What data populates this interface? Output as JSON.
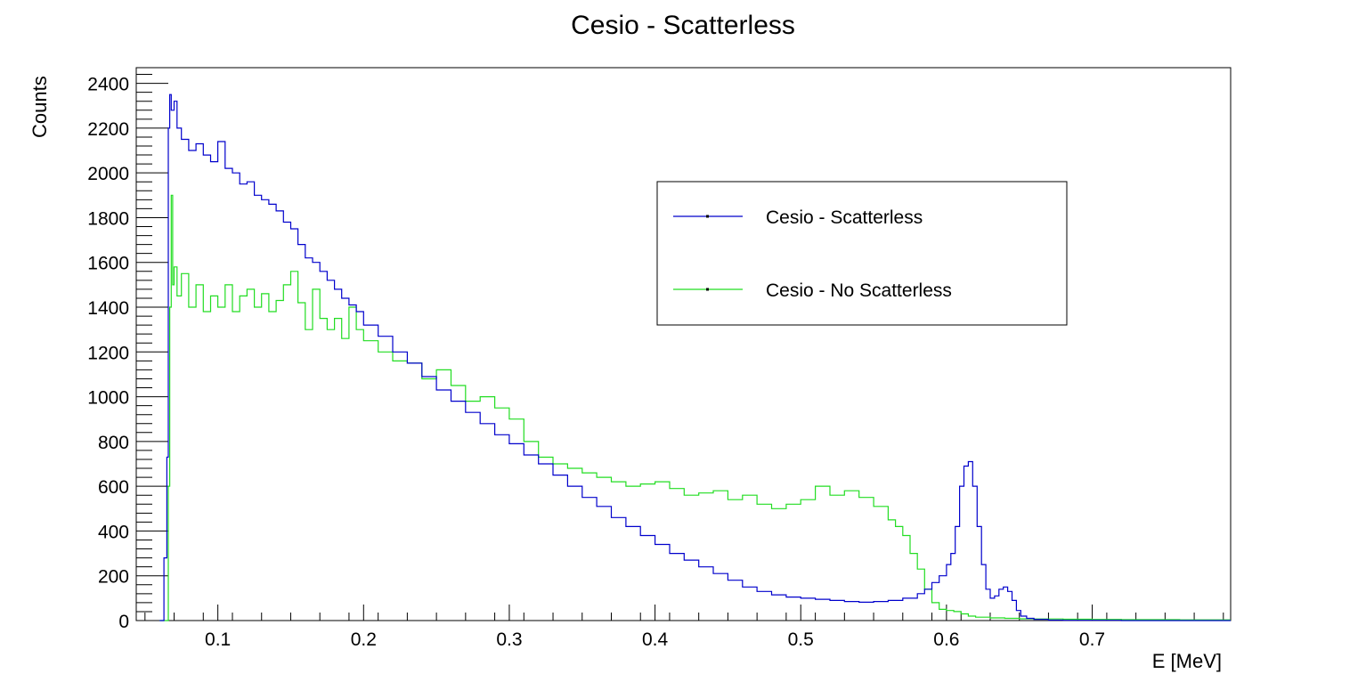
{
  "chart_data": {
    "type": "line",
    "title": "Cesio - Scatterless",
    "xlabel": "E [MeV]",
    "ylabel": "Counts",
    "xlim": [
      0.044,
      0.795
    ],
    "ylim": [
      0,
      2470
    ],
    "x_ticks": [
      0.1,
      0.2,
      0.3,
      0.4,
      0.5,
      0.6,
      0.7
    ],
    "x_tick_labels": [
      "0.1",
      "0.2",
      "0.3",
      "0.4",
      "0.5",
      "0.6",
      "0.7"
    ],
    "y_ticks": [
      0,
      200,
      400,
      600,
      800,
      1000,
      1200,
      1400,
      1600,
      1800,
      2000,
      2200,
      2400
    ],
    "y_tick_labels": [
      "0",
      "200",
      "400",
      "600",
      "800",
      "1000",
      "1200",
      "1400",
      "1600",
      "1800",
      "2000",
      "2200",
      "2400"
    ],
    "grid": false,
    "legend_position": "top-right",
    "series": [
      {
        "name": "Cesio - Scatterless",
        "color": "#0000cc",
        "x": [
          0.06,
          0.063,
          0.065,
          0.066,
          0.067,
          0.068,
          0.07,
          0.072,
          0.075,
          0.08,
          0.085,
          0.09,
          0.095,
          0.1,
          0.105,
          0.11,
          0.115,
          0.12,
          0.125,
          0.13,
          0.135,
          0.14,
          0.145,
          0.15,
          0.155,
          0.16,
          0.165,
          0.17,
          0.175,
          0.18,
          0.185,
          0.19,
          0.195,
          0.2,
          0.21,
          0.22,
          0.23,
          0.24,
          0.25,
          0.26,
          0.27,
          0.28,
          0.29,
          0.3,
          0.31,
          0.32,
          0.33,
          0.34,
          0.35,
          0.36,
          0.37,
          0.38,
          0.39,
          0.4,
          0.41,
          0.42,
          0.43,
          0.44,
          0.45,
          0.46,
          0.47,
          0.48,
          0.49,
          0.5,
          0.51,
          0.52,
          0.53,
          0.54,
          0.55,
          0.56,
          0.57,
          0.58,
          0.585,
          0.59,
          0.595,
          0.6,
          0.603,
          0.606,
          0.609,
          0.612,
          0.615,
          0.618,
          0.621,
          0.624,
          0.627,
          0.63,
          0.633,
          0.636,
          0.639,
          0.642,
          0.645,
          0.648,
          0.651,
          0.655,
          0.66,
          0.67,
          0.68,
          0.7,
          0.72,
          0.74,
          0.76,
          0.78,
          0.795
        ],
        "y": [
          0,
          280,
          730,
          2200,
          2350,
          2280,
          2320,
          2200,
          2150,
          2100,
          2130,
          2080,
          2050,
          2140,
          2020,
          2000,
          1950,
          1960,
          1900,
          1880,
          1860,
          1830,
          1780,
          1750,
          1680,
          1620,
          1600,
          1560,
          1520,
          1480,
          1440,
          1410,
          1380,
          1320,
          1270,
          1200,
          1150,
          1090,
          1030,
          980,
          930,
          880,
          830,
          790,
          740,
          700,
          650,
          600,
          550,
          510,
          460,
          420,
          380,
          340,
          300,
          270,
          240,
          210,
          180,
          150,
          130,
          115,
          105,
          100,
          95,
          90,
          85,
          82,
          85,
          90,
          100,
          120,
          140,
          170,
          200,
          250,
          300,
          420,
          600,
          690,
          710,
          600,
          420,
          250,
          140,
          100,
          110,
          140,
          150,
          130,
          90,
          45,
          20,
          10,
          5,
          2,
          1,
          1,
          0,
          0,
          0,
          0,
          0
        ]
      },
      {
        "name": "Cesio - No Scatterless",
        "color": "#22dd22",
        "x": [
          0.06,
          0.064,
          0.066,
          0.067,
          0.068,
          0.069,
          0.07,
          0.072,
          0.075,
          0.08,
          0.085,
          0.09,
          0.095,
          0.1,
          0.105,
          0.11,
          0.115,
          0.12,
          0.125,
          0.13,
          0.135,
          0.14,
          0.145,
          0.15,
          0.155,
          0.16,
          0.165,
          0.17,
          0.175,
          0.18,
          0.185,
          0.19,
          0.195,
          0.2,
          0.21,
          0.22,
          0.23,
          0.24,
          0.25,
          0.26,
          0.27,
          0.28,
          0.29,
          0.3,
          0.31,
          0.32,
          0.33,
          0.34,
          0.35,
          0.36,
          0.37,
          0.38,
          0.39,
          0.4,
          0.41,
          0.42,
          0.43,
          0.44,
          0.45,
          0.46,
          0.47,
          0.48,
          0.49,
          0.5,
          0.51,
          0.52,
          0.53,
          0.54,
          0.55,
          0.56,
          0.565,
          0.57,
          0.575,
          0.58,
          0.585,
          0.59,
          0.595,
          0.6,
          0.605,
          0.61,
          0.615,
          0.62,
          0.63,
          0.64,
          0.65,
          0.66,
          0.68,
          0.7,
          0.72,
          0.74,
          0.76,
          0.78,
          0.795
        ],
        "y": [
          0,
          0,
          600,
          1400,
          1900,
          1500,
          1580,
          1450,
          1550,
          1400,
          1500,
          1380,
          1450,
          1400,
          1500,
          1380,
          1450,
          1480,
          1400,
          1460,
          1380,
          1430,
          1500,
          1560,
          1420,
          1300,
          1480,
          1350,
          1300,
          1350,
          1260,
          1400,
          1300,
          1250,
          1200,
          1160,
          1150,
          1080,
          1120,
          1050,
          980,
          1000,
          950,
          900,
          800,
          730,
          700,
          680,
          660,
          640,
          620,
          600,
          610,
          620,
          590,
          560,
          570,
          580,
          540,
          560,
          520,
          500,
          520,
          540,
          600,
          560,
          580,
          550,
          510,
          450,
          420,
          380,
          300,
          230,
          140,
          80,
          50,
          45,
          40,
          30,
          20,
          15,
          12,
          10,
          8,
          7,
          6,
          5,
          4,
          4,
          3,
          3,
          3
        ]
      }
    ]
  }
}
